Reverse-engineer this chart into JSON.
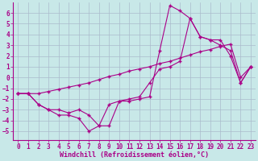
{
  "xlabel": "Windchill (Refroidissement éolien,°C)",
  "xlim": [
    -0.5,
    23.5
  ],
  "ylim": [
    -5.8,
    7.0
  ],
  "bg_color": "#c8e8e8",
  "grid_color": "#aabbcc",
  "line_color": "#aa0088",
  "line1_x": [
    0,
    1,
    2,
    3,
    4,
    5,
    6,
    7,
    8,
    9,
    10,
    11,
    12,
    13,
    14,
    15,
    16,
    17,
    18,
    19,
    20,
    21,
    22,
    23
  ],
  "line1_y": [
    -1.5,
    -1.5,
    -2.5,
    -3.0,
    -3.5,
    -3.5,
    -3.8,
    -5.0,
    -4.5,
    -4.5,
    -2.2,
    -2.2,
    -2.0,
    -1.8,
    2.5,
    6.7,
    6.2,
    5.5,
    3.8,
    3.5,
    3.5,
    2.0,
    -0.5,
    1.0
  ],
  "line2_x": [
    0,
    1,
    2,
    3,
    4,
    5,
    6,
    7,
    8,
    9,
    10,
    11,
    12,
    13,
    14,
    15,
    16,
    17,
    18,
    19,
    20,
    21,
    22,
    23
  ],
  "line2_y": [
    -1.5,
    -1.5,
    -2.5,
    -3.0,
    -3.0,
    -3.3,
    -3.0,
    -3.5,
    -4.5,
    -2.5,
    -2.2,
    -2.0,
    -1.8,
    -0.5,
    0.8,
    1.0,
    1.5,
    5.5,
    3.8,
    3.5,
    3.0,
    2.5,
    -0.5,
    1.0
  ],
  "line3_x": [
    0,
    1,
    2,
    3,
    4,
    5,
    6,
    7,
    8,
    9,
    10,
    11,
    12,
    13,
    14,
    15,
    16,
    17,
    18,
    19,
    20,
    21,
    22,
    23
  ],
  "line3_y": [
    -1.5,
    -1.5,
    -1.5,
    -1.3,
    -1.1,
    -0.9,
    -0.7,
    -0.5,
    -0.2,
    0.1,
    0.3,
    0.6,
    0.8,
    1.0,
    1.3,
    1.5,
    1.8,
    2.1,
    2.4,
    2.6,
    2.9,
    3.1,
    0.0,
    1.0
  ],
  "yticks": [
    -5,
    -4,
    -3,
    -2,
    -1,
    0,
    1,
    2,
    3,
    4,
    5,
    6
  ],
  "xticks": [
    0,
    1,
    2,
    3,
    4,
    5,
    6,
    7,
    8,
    9,
    10,
    11,
    12,
    13,
    14,
    15,
    16,
    17,
    18,
    19,
    20,
    21,
    22,
    23
  ],
  "tick_fontsize": 5.5,
  "xlabel_fontsize": 6.0
}
